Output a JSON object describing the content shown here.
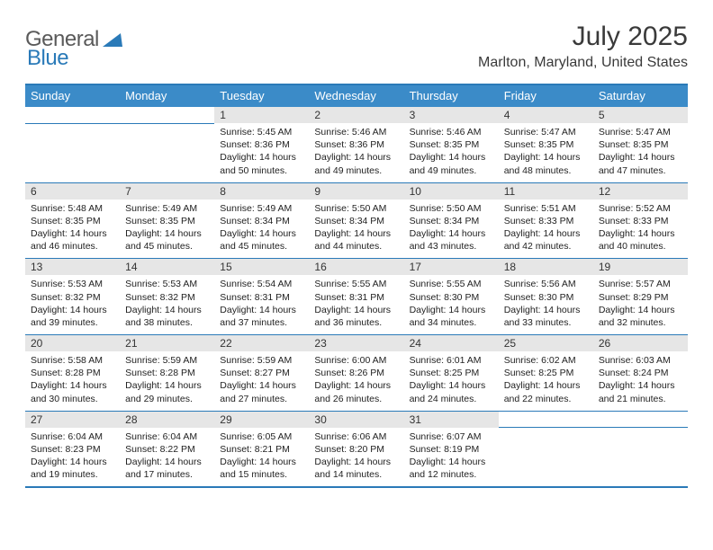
{
  "brand": {
    "text1": "General",
    "text2": "Blue",
    "text1_color": "#5a5a5a",
    "text2_color": "#2a7ab8",
    "triangle_color": "#2a7ab8"
  },
  "title": {
    "month_year": "July 2025",
    "location": "Marlton, Maryland, United States"
  },
  "styling": {
    "header_bg": "#3b8bc8",
    "header_fg": "#ffffff",
    "daynum_bg": "#e6e6e6",
    "rule_color": "#2a7ab8",
    "body_bg": "#ffffff",
    "text_color": "#222222",
    "font_family": "Arial",
    "month_fontsize": 30,
    "location_fontsize": 16,
    "dayhead_fontsize": 13,
    "cell_fontsize": 10.5
  },
  "day_headers": [
    "Sunday",
    "Monday",
    "Tuesday",
    "Wednesday",
    "Thursday",
    "Friday",
    "Saturday"
  ],
  "weeks": [
    [
      null,
      null,
      {
        "n": "1",
        "sunrise": "5:45 AM",
        "sunset": "8:36 PM",
        "daylight": "14 hours and 50 minutes."
      },
      {
        "n": "2",
        "sunrise": "5:46 AM",
        "sunset": "8:36 PM",
        "daylight": "14 hours and 49 minutes."
      },
      {
        "n": "3",
        "sunrise": "5:46 AM",
        "sunset": "8:35 PM",
        "daylight": "14 hours and 49 minutes."
      },
      {
        "n": "4",
        "sunrise": "5:47 AM",
        "sunset": "8:35 PM",
        "daylight": "14 hours and 48 minutes."
      },
      {
        "n": "5",
        "sunrise": "5:47 AM",
        "sunset": "8:35 PM",
        "daylight": "14 hours and 47 minutes."
      }
    ],
    [
      {
        "n": "6",
        "sunrise": "5:48 AM",
        "sunset": "8:35 PM",
        "daylight": "14 hours and 46 minutes."
      },
      {
        "n": "7",
        "sunrise": "5:49 AM",
        "sunset": "8:35 PM",
        "daylight": "14 hours and 45 minutes."
      },
      {
        "n": "8",
        "sunrise": "5:49 AM",
        "sunset": "8:34 PM",
        "daylight": "14 hours and 45 minutes."
      },
      {
        "n": "9",
        "sunrise": "5:50 AM",
        "sunset": "8:34 PM",
        "daylight": "14 hours and 44 minutes."
      },
      {
        "n": "10",
        "sunrise": "5:50 AM",
        "sunset": "8:34 PM",
        "daylight": "14 hours and 43 minutes."
      },
      {
        "n": "11",
        "sunrise": "5:51 AM",
        "sunset": "8:33 PM",
        "daylight": "14 hours and 42 minutes."
      },
      {
        "n": "12",
        "sunrise": "5:52 AM",
        "sunset": "8:33 PM",
        "daylight": "14 hours and 40 minutes."
      }
    ],
    [
      {
        "n": "13",
        "sunrise": "5:53 AM",
        "sunset": "8:32 PM",
        "daylight": "14 hours and 39 minutes."
      },
      {
        "n": "14",
        "sunrise": "5:53 AM",
        "sunset": "8:32 PM",
        "daylight": "14 hours and 38 minutes."
      },
      {
        "n": "15",
        "sunrise": "5:54 AM",
        "sunset": "8:31 PM",
        "daylight": "14 hours and 37 minutes."
      },
      {
        "n": "16",
        "sunrise": "5:55 AM",
        "sunset": "8:31 PM",
        "daylight": "14 hours and 36 minutes."
      },
      {
        "n": "17",
        "sunrise": "5:55 AM",
        "sunset": "8:30 PM",
        "daylight": "14 hours and 34 minutes."
      },
      {
        "n": "18",
        "sunrise": "5:56 AM",
        "sunset": "8:30 PM",
        "daylight": "14 hours and 33 minutes."
      },
      {
        "n": "19",
        "sunrise": "5:57 AM",
        "sunset": "8:29 PM",
        "daylight": "14 hours and 32 minutes."
      }
    ],
    [
      {
        "n": "20",
        "sunrise": "5:58 AM",
        "sunset": "8:28 PM",
        "daylight": "14 hours and 30 minutes."
      },
      {
        "n": "21",
        "sunrise": "5:59 AM",
        "sunset": "8:28 PM",
        "daylight": "14 hours and 29 minutes."
      },
      {
        "n": "22",
        "sunrise": "5:59 AM",
        "sunset": "8:27 PM",
        "daylight": "14 hours and 27 minutes."
      },
      {
        "n": "23",
        "sunrise": "6:00 AM",
        "sunset": "8:26 PM",
        "daylight": "14 hours and 26 minutes."
      },
      {
        "n": "24",
        "sunrise": "6:01 AM",
        "sunset": "8:25 PM",
        "daylight": "14 hours and 24 minutes."
      },
      {
        "n": "25",
        "sunrise": "6:02 AM",
        "sunset": "8:25 PM",
        "daylight": "14 hours and 22 minutes."
      },
      {
        "n": "26",
        "sunrise": "6:03 AM",
        "sunset": "8:24 PM",
        "daylight": "14 hours and 21 minutes."
      }
    ],
    [
      {
        "n": "27",
        "sunrise": "6:04 AM",
        "sunset": "8:23 PM",
        "daylight": "14 hours and 19 minutes."
      },
      {
        "n": "28",
        "sunrise": "6:04 AM",
        "sunset": "8:22 PM",
        "daylight": "14 hours and 17 minutes."
      },
      {
        "n": "29",
        "sunrise": "6:05 AM",
        "sunset": "8:21 PM",
        "daylight": "14 hours and 15 minutes."
      },
      {
        "n": "30",
        "sunrise": "6:06 AM",
        "sunset": "8:20 PM",
        "daylight": "14 hours and 14 minutes."
      },
      {
        "n": "31",
        "sunrise": "6:07 AM",
        "sunset": "8:19 PM",
        "daylight": "14 hours and 12 minutes."
      },
      null,
      null
    ]
  ],
  "labels": {
    "sunrise_prefix": "Sunrise: ",
    "sunset_prefix": "Sunset: ",
    "daylight_prefix": "Daylight: "
  }
}
